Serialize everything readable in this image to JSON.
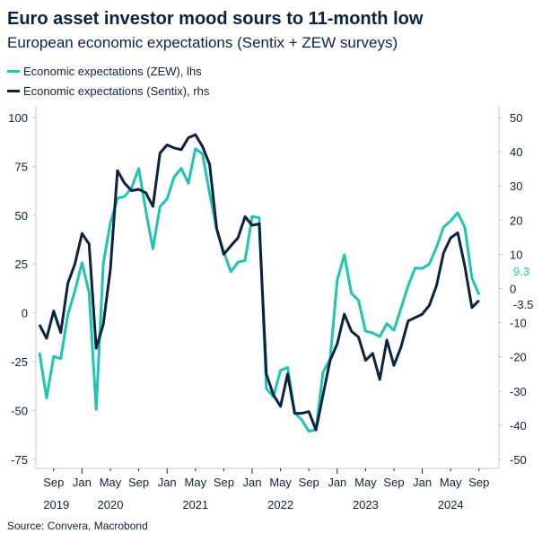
{
  "header": {
    "title": "Euro asset investor mood sours to 11-month low",
    "subtitle": "European economic expectations (Sentix + ZEW surveys)"
  },
  "legend": [
    {
      "label": "Economic expectations (ZEW), lhs",
      "color": "#1ec6b2"
    },
    {
      "label": "Economic expectations (Sentix), rhs",
      "color": "#0b2341"
    }
  ],
  "source": "Source: Convera, Macrobond",
  "chart_data": {
    "type": "line",
    "title": "Euro asset investor mood sours to 11-month low",
    "subtitle": "European economic expectations (Sentix + ZEW surveys)",
    "x_start": "2019-07",
    "x_end": "2024-09",
    "frequency": "monthly",
    "x_tick_labels": [
      "Sep",
      "Jan",
      "May",
      "Sep",
      "Jan",
      "May",
      "Sep",
      "Jan",
      "May",
      "Sep",
      "Jan",
      "May",
      "Sep",
      "Jan",
      "May",
      "Sep"
    ],
    "x_year_labels": [
      "2019",
      "2020",
      "2021",
      "2022",
      "2023",
      "2024"
    ],
    "y_left": {
      "range": [
        -80,
        105
      ],
      "ticks": [
        "100",
        "75",
        "50",
        "25",
        "0",
        "-25",
        "-50",
        "-75"
      ]
    },
    "y_right": {
      "range": [
        -53,
        52.5
      ],
      "ticks": [
        "50",
        "40",
        "30",
        "20",
        "10",
        "0",
        "-10",
        "-20",
        "-30",
        "-40",
        "-50"
      ]
    },
    "grid": false,
    "legend_position": "top-left",
    "series": [
      {
        "name": "Economic expectations (ZEW), lhs",
        "axis": "left",
        "color": "#1ec6b2",
        "last_label": "9.3",
        "values": [
          -20.3,
          -43.6,
          -22.4,
          -23.5,
          -1.0,
          11.2,
          25.6,
          10.4,
          -49.5,
          25.2,
          46.0,
          58.6,
          59.6,
          64.0,
          73.9,
          52.3,
          32.8,
          54.4,
          58.3,
          69.6,
          74.0,
          66.3,
          84.0,
          81.3,
          61.2,
          42.7,
          31.1,
          21.0,
          25.9,
          26.8,
          49.4,
          48.6,
          -38.7,
          -43.0,
          -29.5,
          -28.0,
          -51.1,
          -54.9,
          -60.7,
          -59.7,
          -30.4,
          -23.6,
          16.7,
          29.7,
          10.0,
          6.4,
          -9.4,
          -10.3,
          -12.2,
          -5.5,
          -8.9,
          2.3,
          13.8,
          23.0,
          22.7,
          25.0,
          33.5,
          43.9,
          47.0,
          51.3,
          43.7,
          17.9,
          9.3
        ]
      },
      {
        "name": "Economic expectations (Sentix), rhs",
        "axis": "right",
        "color": "#0b2341",
        "last_label": "-3.5",
        "values": [
          -10.6,
          -14.6,
          -6.6,
          -12.9,
          1.5,
          7.2,
          16.1,
          13.0,
          -17.5,
          -10.5,
          5.6,
          34.5,
          30.8,
          28.6,
          29.0,
          28.0,
          24.0,
          39.6,
          42.0,
          41.1,
          40.6,
          44.1,
          45.0,
          41.5,
          36.3,
          17.5,
          10.0,
          12.5,
          14.8,
          21.0,
          18.5,
          18.9,
          -25.0,
          -31.1,
          -34.5,
          -25.0,
          -36.5,
          -36.5,
          -36.0,
          -41.4,
          -31.1,
          -21.0,
          -16.2,
          -7.5,
          -12.5,
          -14.2,
          -21.0,
          -19.0,
          -26.6,
          -15.1,
          -22.5,
          -17.1,
          -9.5,
          -8.5,
          -7.5,
          -4.9,
          0.8,
          10.4,
          14.8,
          16.3,
          6.5,
          -5.6,
          -3.5
        ]
      }
    ]
  }
}
